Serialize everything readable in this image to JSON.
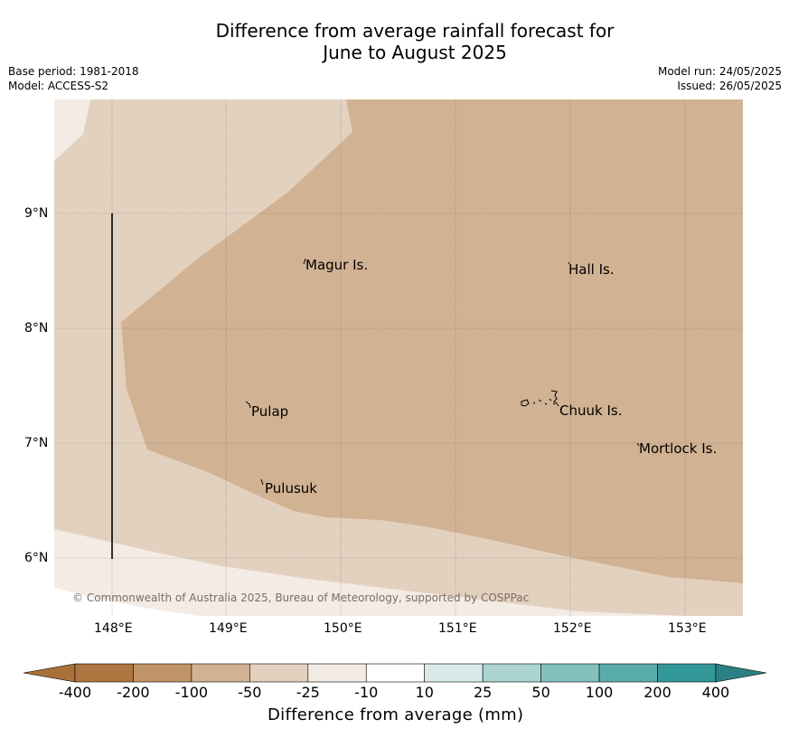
{
  "title": {
    "line1": "Difference from average rainfall forecast for",
    "line2": "June to August 2025"
  },
  "meta": {
    "base_period": "Base period: 1981-2018",
    "model": "Model: ACCESS-S2",
    "model_run": "Model run: 24/05/2025",
    "issued": "Issued: 26/05/2025"
  },
  "map": {
    "lat_labels": [
      "9°N",
      "8°N",
      "7°N",
      "6°N"
    ],
    "lon_labels": [
      "148°E",
      "149°E",
      "150°E",
      "151°E",
      "152°E",
      "153°E"
    ],
    "places": [
      "Magur Is.",
      "Hall Is.",
      "Pulap",
      "Chuuk Is.",
      "Mortlock Is.",
      "Pulusuk"
    ],
    "copyright": "© Commonwealth of Australia 2025, Bureau of Meteorology, supported by COSPPac",
    "colors": {
      "minus_10_to_minus_25": "#f4ebe5",
      "minus_25_to_minus_50": "#e3d1bf",
      "minus_50_to_minus_100": "#d1b293"
    }
  },
  "colorbar": {
    "ticks": [
      "-400",
      "-200",
      "-100",
      "-50",
      "-25",
      "-10",
      "10",
      "25",
      "50",
      "100",
      "200",
      "400"
    ],
    "colors": [
      "#a87139",
      "#ae7640",
      "#c19467",
      "#d1b293",
      "#e3d1bf",
      "#f4ebe5",
      "#ffffff",
      "#d8eae8",
      "#acd5d2",
      "#82c1bd",
      "#5aacaa",
      "#34989a",
      "#2a8082"
    ],
    "label": "Difference from average (mm)"
  }
}
